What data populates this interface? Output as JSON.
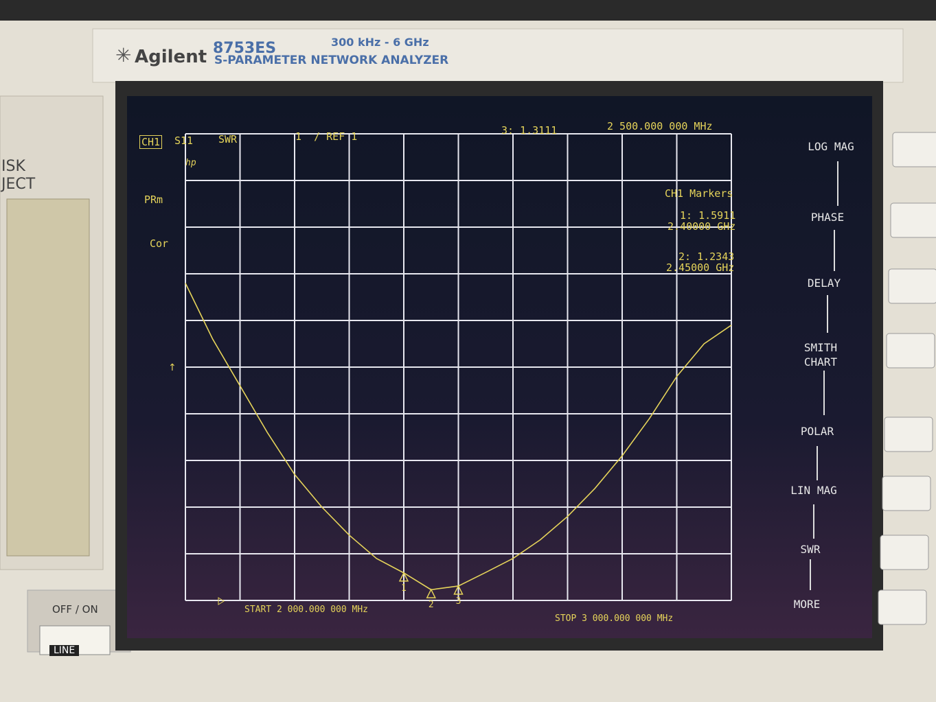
{
  "instrument": {
    "brand": "Agilent",
    "model": "8753ES",
    "range": "300 kHz - 6 GHz",
    "description": "S-PARAMETER NETWORK ANALYZER"
  },
  "panel": {
    "disk_line_1": "ISK",
    "disk_line_2": "JECT",
    "power": "OFF / ON",
    "line": "LINE"
  },
  "screen": {
    "channel": "CH1",
    "parameter": "S11",
    "format": "SWR",
    "scale": "1  / REF 1",
    "active_marker": "3: 1.3111",
    "active_frequency": "2 500.000 000 MHz",
    "status": [
      "hp",
      "PRm",
      "Cor"
    ],
    "marker_heading": "CH1 Markers",
    "marker_readouts": [
      {
        "value": "1: 1.5911",
        "frequency": "2.40000 GHz"
      },
      {
        "value": "2: 1.2343",
        "frequency": "2.45000 GHz"
      }
    ],
    "start": "START 2 000.000 000 MHz",
    "stop": "STOP 3 000.000 000 MHz"
  },
  "softkeys": [
    "LOG MAG",
    "PHASE",
    "DELAY",
    "SMITH CHART",
    "POLAR",
    "LIN MAG",
    "SWR",
    "MORE"
  ],
  "chart_data": {
    "type": "line",
    "x": [
      2000,
      2050,
      2100,
      2150,
      2200,
      2250,
      2300,
      2350,
      2400,
      2450,
      2500,
      2550,
      2600,
      2650,
      2700,
      2750,
      2800,
      2850,
      2900,
      2950,
      3000
    ],
    "series": [
      {
        "color": "#e6d45a",
        "values": [
          7.8,
          6.6,
          5.6,
          4.6,
          3.7,
          3.0,
          2.4,
          1.9,
          1.59,
          1.23,
          1.31,
          1.6,
          1.9,
          2.3,
          2.8,
          3.4,
          4.1,
          4.9,
          5.8,
          6.5,
          6.9
        ]
      }
    ],
    "xlim": [
      2000,
      3000
    ],
    "xticks": [
      2000,
      2100,
      2200,
      2300,
      2400,
      2500,
      2600,
      2700,
      2800,
      2900,
      3000
    ],
    "ylim": [
      1,
      11
    ],
    "yticks": [
      1,
      2,
      3,
      4,
      5,
      6,
      7,
      8,
      9,
      10,
      11
    ],
    "grid": true,
    "markers": [
      {
        "label": "1",
        "x": 2400,
        "value": 1.5911
      },
      {
        "label": "2",
        "x": 2450,
        "value": 1.2343
      },
      {
        "label": "3",
        "x": 2500,
        "value": 1.3111
      }
    ]
  }
}
